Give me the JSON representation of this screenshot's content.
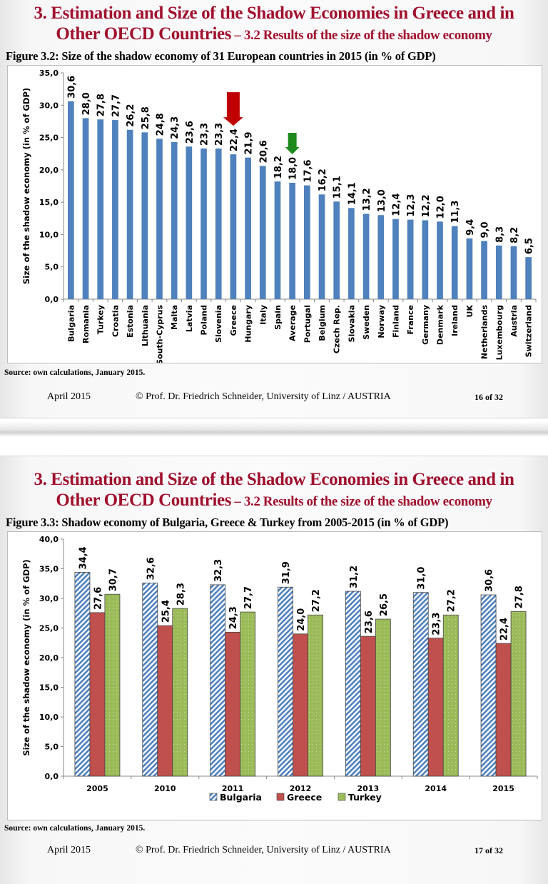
{
  "slides": [
    {
      "title_main": "3. Estimation and Size of the Shadow Economies in Greece and in",
      "title_line2_main": "Other OECD Countries",
      "title_line2_sub": " – 3.2 Results of the size of the shadow economy",
      "figure_caption": "Figure 3.2: Size of the shadow economy of 31 European countries in 2015 (in % of GDP)",
      "source": "Source: own calculations, January 2015.",
      "footer": {
        "date": "April 2015",
        "author": "© Prof. Dr. Friedrich Schneider, University of Linz / AUSTRIA",
        "page": "16 of 32"
      }
    },
    {
      "title_main": "3. Estimation and Size of the Shadow Economies in Greece and in",
      "title_line2_main": "Other OECD Countries",
      "title_line2_sub": " – 3.2 Results of the size of the shadow economy",
      "figure_caption": "Figure 3.3: Shadow economy of Bulgaria, Greece & Turkey from 2005-2015 (in % of GDP)",
      "source": "Source: own calculations, January 2015.",
      "footer": {
        "date": "April 2015",
        "author": "© Prof. Dr. Friedrich Schneider, University of Linz / AUSTRIA",
        "page": "17 of 32"
      }
    }
  ],
  "chart_data": [
    {
      "type": "bar",
      "title": "Figure 3.2: Size of the shadow economy of 31 European countries in 2015 (in % of GDP)",
      "xlabel": "",
      "ylabel": "Size of the shadow economy (in % of GDP)",
      "ylim": [
        0,
        35
      ],
      "yticks": [
        "0,0",
        "5,0",
        "10,0",
        "15,0",
        "20,0",
        "25,0",
        "30,0",
        "35,0"
      ],
      "grid": false,
      "bar_color": "#4f81bd",
      "categories": [
        "Bulgaria",
        "Romania",
        "Turkey",
        "Croatia",
        "Estonia",
        "Lithuania",
        "South-Cyprus",
        "Malta",
        "Latvia",
        "Poland",
        "Slovenia",
        "Greece",
        "Hungary",
        "Italy",
        "Spain",
        "Average",
        "Portugal",
        "Belgium",
        "Czech Rep.",
        "Slovakia",
        "Sweden",
        "Norway",
        "Finland",
        "France",
        "Germany",
        "Denmark",
        "Ireland",
        "UK",
        "Netherlands",
        "Luxembourg",
        "Austria",
        "Switzerland"
      ],
      "values": [
        30.6,
        28.0,
        27.8,
        27.7,
        26.2,
        25.8,
        24.8,
        24.3,
        23.6,
        23.3,
        23.3,
        22.4,
        21.9,
        20.6,
        18.2,
        18.0,
        17.6,
        16.2,
        15.1,
        14.1,
        13.2,
        13.0,
        12.4,
        12.3,
        12.2,
        12.0,
        11.3,
        9.4,
        9.0,
        8.3,
        8.2,
        6.5
      ],
      "labels": [
        "30,6",
        "28,0",
        "27,8",
        "27,7",
        "26,2",
        "25,8",
        "24,8",
        "24,3",
        "23,6",
        "23,3",
        "23,3",
        "22,4",
        "21,9",
        "20,6",
        "18,2",
        "18,0",
        "17,6",
        "16,2",
        "15,1",
        "14,1",
        "13,2",
        "13,0",
        "12,4",
        "12,3",
        "12,2",
        "12,0",
        "11,3",
        "9,4",
        "9,0",
        "8,3",
        "8,2",
        "6,5"
      ],
      "annotations": [
        {
          "type": "arrow-down",
          "target": "Greece",
          "color": "#c00000"
        },
        {
          "type": "arrow-down",
          "target": "Average",
          "color": "#1e8a1e"
        }
      ]
    },
    {
      "type": "bar",
      "title": "Figure 3.3: Shadow economy of Bulgaria, Greece & Turkey from 2005-2015 (in % of GDP)",
      "xlabel": "",
      "ylabel": "Size of the shadow economy (in % of GDP)",
      "ylim": [
        0,
        40
      ],
      "yticks": [
        "0,0",
        "5,0",
        "10,0",
        "15,0",
        "20,0",
        "25,0",
        "30,0",
        "35,0",
        "40,0"
      ],
      "grid": false,
      "legend": "bottom",
      "categories": [
        "2005",
        "2010",
        "2011",
        "2012",
        "2013",
        "2014",
        "2015"
      ],
      "series": [
        {
          "name": "Bulgaria",
          "color": "#4f81bd",
          "pattern": "diagonal-stripes",
          "values": [
            34.4,
            32.6,
            32.3,
            31.9,
            31.2,
            31.0,
            30.6
          ],
          "labels": [
            "34,4",
            "32,6",
            "32,3",
            "31,9",
            "31,2",
            "31,0",
            "30,6"
          ]
        },
        {
          "name": "Greece",
          "color": "#c0504d",
          "pattern": "solid",
          "values": [
            27.6,
            25.4,
            24.3,
            24.0,
            23.6,
            23.3,
            22.4
          ],
          "labels": [
            "27,6",
            "25,4",
            "24,3",
            "24,0",
            "23,6",
            "23,3",
            "22,4"
          ]
        },
        {
          "name": "Turkey",
          "color": "#9bbb59",
          "pattern": "dots",
          "values": [
            30.7,
            28.3,
            27.7,
            27.2,
            26.5,
            27.2,
            27.8
          ],
          "labels": [
            "30,7",
            "28,3",
            "27,7",
            "27,2",
            "26,5",
            "27,2",
            "27,8"
          ]
        }
      ]
    }
  ]
}
